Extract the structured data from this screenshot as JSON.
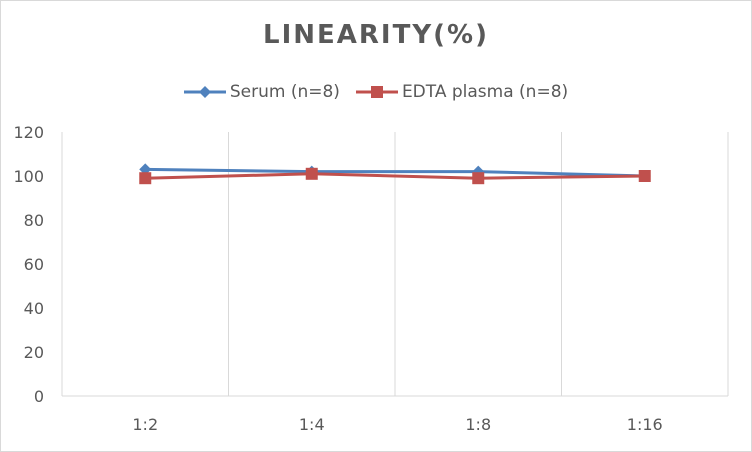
{
  "chart_data": {
    "type": "line",
    "title": "LINEARITY(%)",
    "xlabel": "",
    "ylabel": "",
    "categories": [
      "1:2",
      "1:4",
      "1:8",
      "1:16"
    ],
    "ylim": [
      0,
      120
    ],
    "yticks": [
      0,
      20,
      40,
      60,
      80,
      100,
      120
    ],
    "grid": "vertical",
    "legend_position": "top",
    "series": [
      {
        "name": "Serum (n=8)",
        "values": [
          103,
          102,
          102,
          100
        ],
        "color": "#4f81bd",
        "marker": "diamond"
      },
      {
        "name": "EDTA plasma (n=8)",
        "values": [
          99,
          101,
          99,
          100
        ],
        "color": "#c0504d",
        "marker": "square"
      }
    ]
  }
}
